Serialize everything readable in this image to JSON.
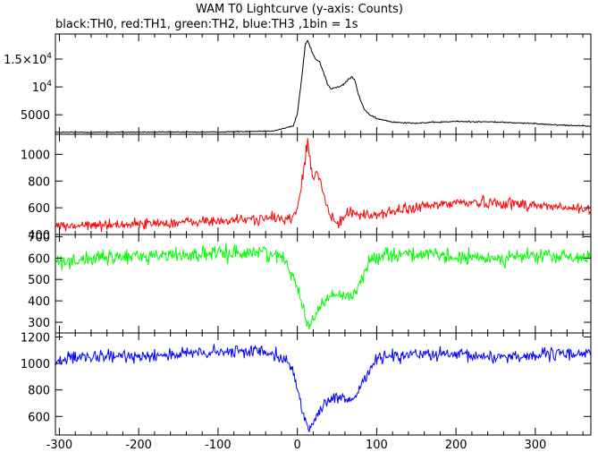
{
  "chart_data": {
    "type": "line",
    "title": "WAM T0 Lightcurve (y-axis: Counts)",
    "subtitle": "black:TH0, red:TH1, green:TH2, blue:TH3 ,1bin = 1s",
    "x_ticks": [
      "-300",
      "-200",
      "-100",
      "0",
      "100",
      "200",
      "300"
    ],
    "x_tick_values": [
      -300,
      -200,
      -100,
      0,
      100,
      200,
      300
    ],
    "xlim": [
      -305,
      370
    ],
    "bin_seconds": 1,
    "panels": [
      {
        "series": "TH0",
        "color": "#000000",
        "ylim": [
          1500,
          19500
        ],
        "y_ticks": [
          {
            "v": 5000,
            "mant": "5000",
            "exp": ""
          },
          {
            "v": 10000,
            "mant": "10",
            "exp": "4"
          },
          {
            "v": 15000,
            "mant": "1.5×10",
            "exp": "4"
          }
        ],
        "baseline": 1900,
        "noise": 60,
        "shape": [
          [
            -305,
            1850
          ],
          [
            -100,
            1900
          ],
          [
            -30,
            2100
          ],
          [
            -5,
            3000
          ],
          [
            0,
            5200
          ],
          [
            5,
            11000
          ],
          [
            10,
            17600
          ],
          [
            13,
            18300
          ],
          [
            17,
            16800
          ],
          [
            22,
            15200
          ],
          [
            28,
            14600
          ],
          [
            33,
            12600
          ],
          [
            38,
            10500
          ],
          [
            43,
            9600
          ],
          [
            48,
            9900
          ],
          [
            53,
            10000
          ],
          [
            58,
            10400
          ],
          [
            63,
            11200
          ],
          [
            68,
            11700
          ],
          [
            72,
            11400
          ],
          [
            76,
            9200
          ],
          [
            80,
            7400
          ],
          [
            85,
            5900
          ],
          [
            92,
            4900
          ],
          [
            100,
            4300
          ],
          [
            120,
            3700
          ],
          [
            150,
            3500
          ],
          [
            200,
            3800
          ],
          [
            250,
            3700
          ],
          [
            300,
            3400
          ],
          [
            340,
            3100
          ],
          [
            370,
            3000
          ]
        ]
      },
      {
        "series": "TH1",
        "color": "#ff0000",
        "ylim": [
          400,
          1150
        ],
        "y_ticks": [
          {
            "v": 400,
            "mant": "400",
            "exp": ""
          },
          {
            "v": 600,
            "mant": "600",
            "exp": ""
          },
          {
            "v": 800,
            "mant": "800",
            "exp": ""
          },
          {
            "v": 1000,
            "mant": "1000",
            "exp": ""
          }
        ],
        "baseline": 480,
        "noise": 28,
        "shape": [
          [
            -305,
            460
          ],
          [
            -200,
            480
          ],
          [
            -100,
            500
          ],
          [
            -40,
            520
          ],
          [
            -5,
            520
          ],
          [
            0,
            600
          ],
          [
            5,
            760
          ],
          [
            10,
            980
          ],
          [
            13,
            1090
          ],
          [
            16,
            950
          ],
          [
            20,
            800
          ],
          [
            24,
            860
          ],
          [
            28,
            820
          ],
          [
            33,
            700
          ],
          [
            38,
            600
          ],
          [
            43,
            520
          ],
          [
            48,
            480
          ],
          [
            55,
            500
          ],
          [
            62,
            560
          ],
          [
            68,
            590
          ],
          [
            72,
            560
          ],
          [
            80,
            540
          ],
          [
            100,
            550
          ],
          [
            150,
            600
          ],
          [
            200,
            640
          ],
          [
            250,
            640
          ],
          [
            300,
            620
          ],
          [
            370,
            580
          ]
        ]
      },
      {
        "series": "TH2",
        "color": "#00ff00",
        "ylim": [
          250,
          710
        ],
        "y_ticks": [
          {
            "v": 300,
            "mant": "300",
            "exp": ""
          },
          {
            "v": 400,
            "mant": "400",
            "exp": ""
          },
          {
            "v": 500,
            "mant": "500",
            "exp": ""
          },
          {
            "v": 600,
            "mant": "600",
            "exp": ""
          },
          {
            "v": 700,
            "mant": "700",
            "exp": ""
          }
        ],
        "baseline": 600,
        "noise": 25,
        "shape": [
          [
            -305,
            585
          ],
          [
            -200,
            610
          ],
          [
            -100,
            620
          ],
          [
            -40,
            630
          ],
          [
            -15,
            590
          ],
          [
            -5,
            520
          ],
          [
            0,
            470
          ],
          [
            5,
            400
          ],
          [
            10,
            320
          ],
          [
            14,
            285
          ],
          [
            20,
            320
          ],
          [
            30,
            380
          ],
          [
            40,
            420
          ],
          [
            50,
            430
          ],
          [
            60,
            420
          ],
          [
            70,
            430
          ],
          [
            78,
            470
          ],
          [
            85,
            540
          ],
          [
            95,
            600
          ],
          [
            110,
            620
          ],
          [
            150,
            620
          ],
          [
            200,
            600
          ],
          [
            250,
            600
          ],
          [
            300,
            610
          ],
          [
            370,
            600
          ]
        ]
      },
      {
        "series": "TH3",
        "color": "#0000ff",
        "ylim": [
          460,
          1230
        ],
        "y_ticks": [
          {
            "v": 600,
            "mant": "600",
            "exp": ""
          },
          {
            "v": 800,
            "mant": "800",
            "exp": ""
          },
          {
            "v": 1000,
            "mant": "1000",
            "exp": ""
          },
          {
            "v": 1200,
            "mant": "1200",
            "exp": ""
          }
        ],
        "baseline": 1050,
        "noise": 35,
        "shape": [
          [
            -305,
            1030
          ],
          [
            -200,
            1060
          ],
          [
            -100,
            1080
          ],
          [
            -40,
            1100
          ],
          [
            -15,
            1040
          ],
          [
            -5,
            920
          ],
          [
            0,
            820
          ],
          [
            5,
            680
          ],
          [
            10,
            560
          ],
          [
            14,
            500
          ],
          [
            20,
            560
          ],
          [
            30,
            660
          ],
          [
            40,
            720
          ],
          [
            50,
            740
          ],
          [
            60,
            720
          ],
          [
            70,
            730
          ],
          [
            78,
            800
          ],
          [
            85,
            900
          ],
          [
            95,
            1000
          ],
          [
            110,
            1060
          ],
          [
            150,
            1070
          ],
          [
            200,
            1060
          ],
          [
            250,
            1050
          ],
          [
            300,
            1060
          ],
          [
            370,
            1080
          ]
        ]
      }
    ],
    "grid": false,
    "legend": "none"
  }
}
